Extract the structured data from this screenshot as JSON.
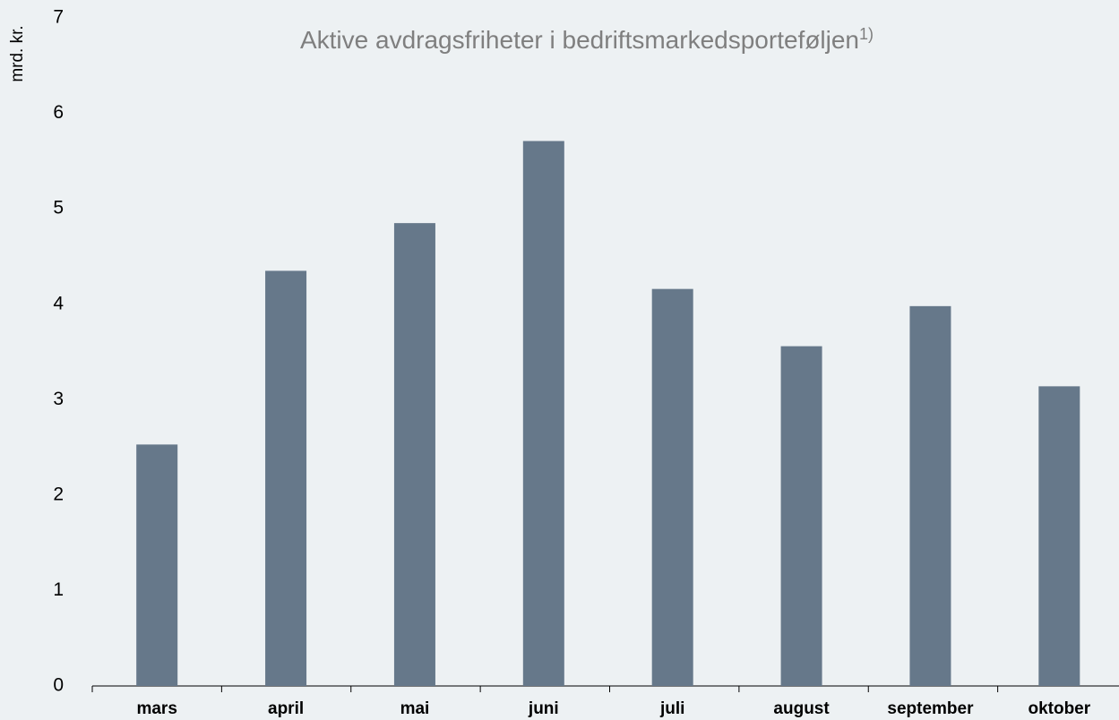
{
  "chart_data": {
    "type": "bar",
    "title": "Aktive avdragsfriheter i bedriftsmarkedsporteføljen",
    "title_superscript": "1)",
    "y_label": "mrd. kr.",
    "categories": [
      "mars",
      "april",
      "mai",
      "juni",
      "juli",
      "august",
      "september",
      "oktober"
    ],
    "values": [
      2.53,
      4.35,
      4.85,
      5.71,
      4.16,
      3.56,
      3.98,
      3.14
    ],
    "color": "#66788a",
    "ylim": [
      0,
      7
    ],
    "yticks": [
      0,
      1,
      2,
      3,
      4,
      5,
      6,
      7
    ],
    "grid": false
  }
}
